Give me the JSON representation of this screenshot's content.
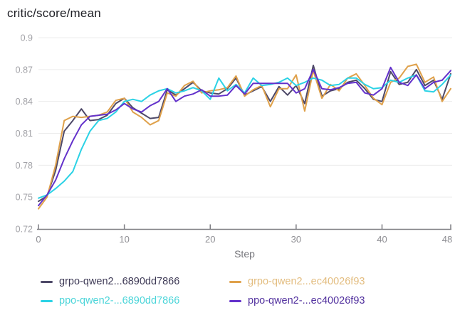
{
  "title": "critic/score/mean",
  "style": {
    "background": "#ffffff",
    "grid_color": "#ececec",
    "axis_color": "#7d7d82",
    "y_label_color": "#a2a2a7",
    "x_label_color": "#8e8e93",
    "axis_title_color": "#76767b",
    "title_color": "#202127"
  },
  "chart_data": {
    "type": "line",
    "title": "critic/score/mean",
    "xlabel": "Step",
    "ylabel": "",
    "xlim": [
      0,
      48
    ],
    "ylim": [
      0.72,
      0.9
    ],
    "x_ticks": [
      0,
      10,
      20,
      30,
      40,
      48
    ],
    "y_ticks": [
      0.72,
      0.75,
      0.78,
      0.81,
      0.84,
      0.87,
      0.9
    ],
    "grid": "horizontal",
    "legend_position": "bottom",
    "x": [
      0,
      1,
      2,
      3,
      4,
      5,
      6,
      7,
      8,
      9,
      10,
      11,
      12,
      13,
      14,
      15,
      16,
      17,
      18,
      19,
      20,
      21,
      22,
      23,
      24,
      25,
      26,
      27,
      28,
      29,
      30,
      31,
      32,
      33,
      34,
      35,
      36,
      37,
      38,
      39,
      40,
      41,
      42,
      43,
      44,
      45,
      46,
      47,
      48
    ],
    "series": [
      {
        "name": "grpo-qwen2...6890dd7866",
        "color": "#4e4968",
        "text_color": "#3e3a56",
        "values": [
          0.746,
          0.751,
          0.775,
          0.812,
          0.822,
          0.833,
          0.822,
          0.823,
          0.827,
          0.838,
          0.843,
          0.834,
          0.829,
          0.824,
          0.825,
          0.851,
          0.846,
          0.852,
          0.858,
          0.85,
          0.848,
          0.847,
          0.852,
          0.862,
          0.846,
          0.85,
          0.854,
          0.84,
          0.854,
          0.846,
          0.855,
          0.838,
          0.874,
          0.845,
          0.85,
          0.852,
          0.858,
          0.86,
          0.852,
          0.842,
          0.84,
          0.868,
          0.856,
          0.858,
          0.87,
          0.855,
          0.86,
          0.842,
          0.866
        ]
      },
      {
        "name": "grpo-qwen2...ec40026f93",
        "color": "#dfa14b",
        "text_color": "#e3bd80",
        "values": [
          0.739,
          0.75,
          0.78,
          0.822,
          0.826,
          0.825,
          0.826,
          0.827,
          0.83,
          0.841,
          0.843,
          0.83,
          0.825,
          0.818,
          0.822,
          0.848,
          0.845,
          0.855,
          0.859,
          0.848,
          0.85,
          0.851,
          0.853,
          0.864,
          0.845,
          0.851,
          0.855,
          0.835,
          0.852,
          0.852,
          0.865,
          0.831,
          0.869,
          0.843,
          0.856,
          0.85,
          0.862,
          0.866,
          0.855,
          0.843,
          0.837,
          0.858,
          0.862,
          0.873,
          0.875,
          0.858,
          0.863,
          0.84,
          0.852
        ]
      },
      {
        "name": "ppo-qwen2-...6890dd7866",
        "color": "#2bd2e5",
        "text_color": "#4bd5d9",
        "values": [
          0.749,
          0.752,
          0.758,
          0.765,
          0.774,
          0.795,
          0.812,
          0.822,
          0.824,
          0.83,
          0.84,
          0.842,
          0.84,
          0.846,
          0.85,
          0.852,
          0.848,
          0.85,
          0.853,
          0.85,
          0.842,
          0.862,
          0.85,
          0.856,
          0.848,
          0.862,
          0.855,
          0.856,
          0.858,
          0.862,
          0.855,
          0.858,
          0.862,
          0.86,
          0.855,
          0.856,
          0.862,
          0.862,
          0.856,
          0.852,
          0.853,
          0.86,
          0.858,
          0.862,
          0.865,
          0.85,
          0.849,
          0.856,
          0.865
        ]
      },
      {
        "name": "ppo-qwen2-...ec40026f93",
        "color": "#6331cb",
        "text_color": "#51309e",
        "values": [
          0.742,
          0.752,
          0.766,
          0.786,
          0.803,
          0.818,
          0.826,
          0.827,
          0.828,
          0.832,
          0.838,
          0.833,
          0.83,
          0.836,
          0.84,
          0.852,
          0.84,
          0.845,
          0.847,
          0.851,
          0.845,
          0.845,
          0.846,
          0.855,
          0.847,
          0.857,
          0.857,
          0.857,
          0.857,
          0.857,
          0.848,
          0.852,
          0.87,
          0.852,
          0.851,
          0.853,
          0.857,
          0.858,
          0.848,
          0.846,
          0.852,
          0.872,
          0.858,
          0.855,
          0.865,
          0.852,
          0.858,
          0.86,
          0.869
        ]
      }
    ]
  }
}
